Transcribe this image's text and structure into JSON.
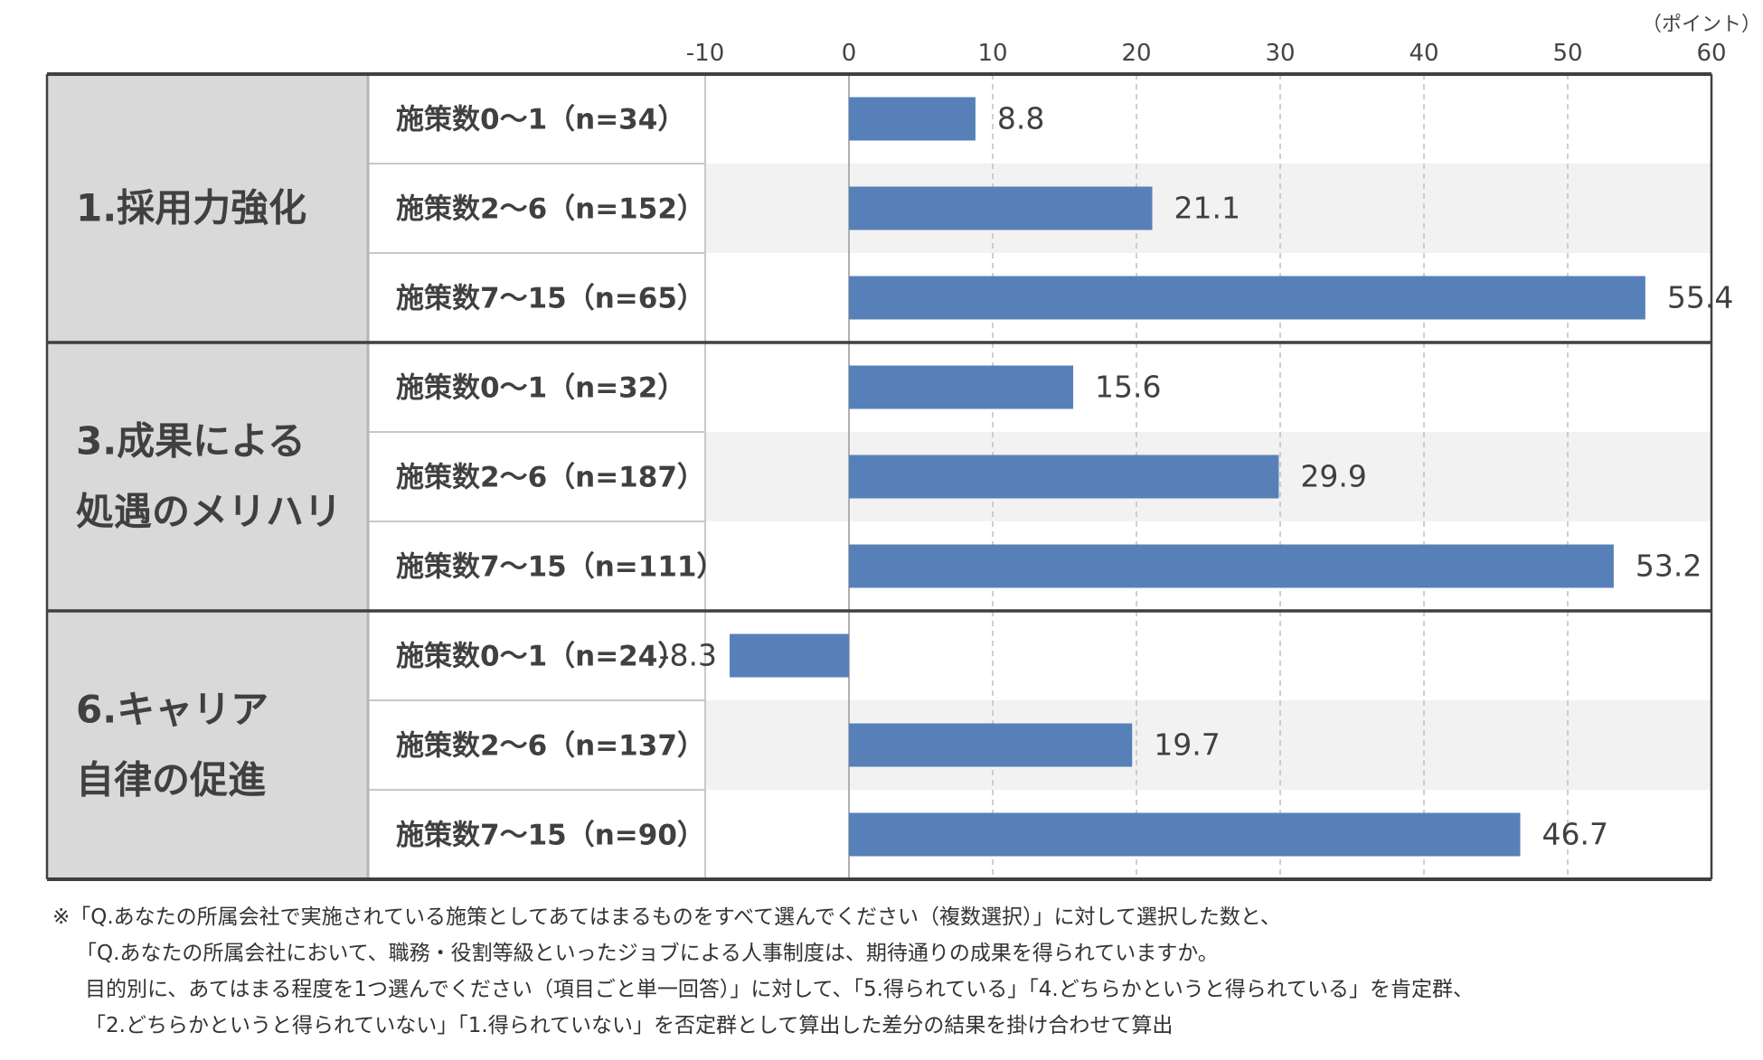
{
  "chart_data": {
    "type": "bar",
    "orientation": "horizontal",
    "unit_label": "（ポイント）",
    "xlim": [
      -10,
      60
    ],
    "xticks": [
      -10,
      0,
      10,
      20,
      30,
      40,
      50,
      60
    ],
    "grid": true,
    "bar_color": "#5780b8",
    "groups": [
      {
        "label_lines": [
          "1.採用力強化"
        ],
        "categories": [
          "施策数0～1（n=34）",
          "施策数2～6（n=152）",
          "施策数7～15（n=65）"
        ],
        "values": [
          8.8,
          21.1,
          55.4
        ]
      },
      {
        "label_lines": [
          "3.成果による",
          "処遇のメリハリ"
        ],
        "categories": [
          "施策数0～1（n=32）",
          "施策数2～6（n=187）",
          "施策数7～15（n=111）"
        ],
        "values": [
          15.6,
          29.9,
          53.2
        ]
      },
      {
        "label_lines": [
          "6.キャリア",
          "自律の促進"
        ],
        "categories": [
          "施策数0～1（n=24）",
          "施策数2～6（n=137）",
          "施策数7～15（n=90）"
        ],
        "values": [
          -8.3,
          19.7,
          46.7
        ]
      }
    ]
  },
  "footnote": [
    "※「Q.あなたの所属会社で実施されている施策としてあてはまるものをすべて選んでください（複数選択）」に対して選択した数と、",
    "「Q.あなたの所属会社において、職務・役割等級といったジョブによる人事制度は、期待通りの成果を得られていますか。",
    "目的別に、あてはまる程度を1つ選んでください（項目ごと単一回答）」に対して、「5.得られている」「4.どちらかというと得られている」を肯定群、",
    "「2.どちらかというと得られていない」「1.得られていない」を否定群として算出した差分の結果を掛け合わせて算出"
  ]
}
